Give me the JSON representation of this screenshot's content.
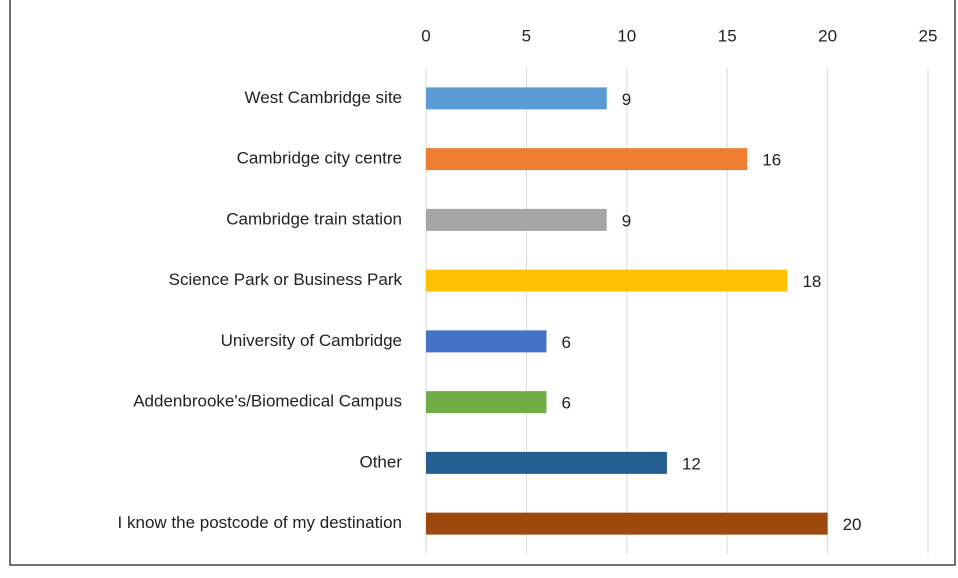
{
  "chart_data": {
    "type": "bar",
    "orientation": "horizontal",
    "categories": [
      "West Cambridge site",
      "Cambridge city centre",
      "Cambridge train station",
      "Science Park or Business Park",
      "University of Cambridge",
      "Addenbrooke's/Biomedical Campus",
      "Other",
      "I know the postcode of my destination"
    ],
    "values": [
      9,
      16,
      9,
      18,
      6,
      6,
      12,
      20
    ],
    "colors": [
      "#5b9bd5",
      "#ed7d31",
      "#a5a5a5",
      "#ffc000",
      "#4472c4",
      "#70ad47",
      "#255e91",
      "#9e480e"
    ],
    "xlim": [
      0,
      25
    ],
    "xticks": [
      0,
      5,
      10,
      15,
      20,
      25
    ],
    "grid": true,
    "data_labels": true
  }
}
